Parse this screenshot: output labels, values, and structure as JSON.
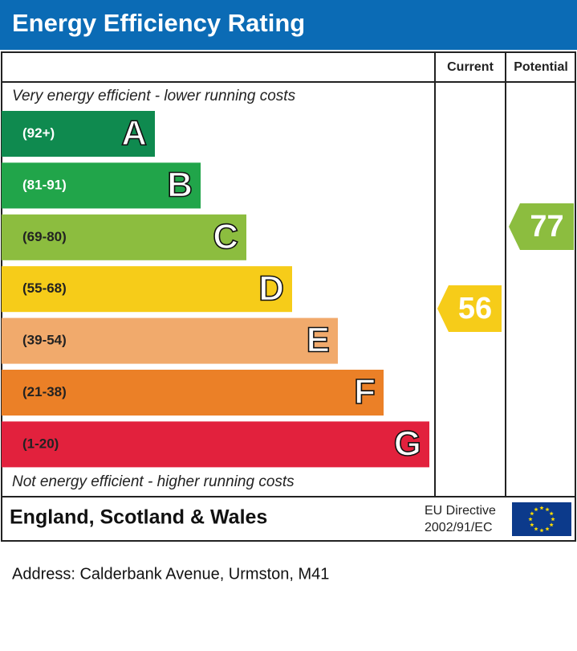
{
  "header": {
    "title": "Energy Efficiency Rating"
  },
  "chart_data": {
    "type": "epc",
    "columns": [
      "Current",
      "Potential"
    ],
    "top_note": "Very energy efficient - lower running costs",
    "bottom_note": "Not energy efficient - higher running costs",
    "bands": [
      {
        "range": "(92+)",
        "letter": "A",
        "color": "#0f8a4f"
      },
      {
        "range": "(81-91)",
        "letter": "B",
        "color": "#21a54a"
      },
      {
        "range": "(69-80)",
        "letter": "C",
        "color": "#8cbd3f"
      },
      {
        "range": "(55-68)",
        "letter": "D",
        "color": "#f6cc19"
      },
      {
        "range": "(39-54)",
        "letter": "E",
        "color": "#f1aa6c"
      },
      {
        "range": "(21-38)",
        "letter": "F",
        "color": "#eb8027"
      },
      {
        "range": "(1-20)",
        "letter": "G",
        "color": "#e2213d"
      }
    ],
    "current": 56,
    "potential": 77
  },
  "footer": {
    "region": "England, Scotland & Wales",
    "directive": [
      "EU Directive",
      "2002/91/EC"
    ]
  },
  "address": "Address: Calderbank Avenue, Urmston, M41"
}
